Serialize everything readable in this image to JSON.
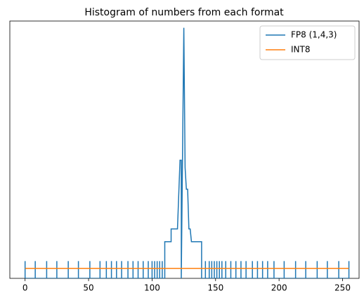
{
  "chart_data": {
    "type": "line",
    "title": "Histogram of numbers from each format",
    "yscale": "log",
    "legend": "upper right",
    "xlim": [
      -12,
      263
    ],
    "ylim": [
      0.7,
      7000
    ],
    "xticks": [
      0,
      50,
      100,
      150,
      200,
      250
    ],
    "series": [
      {
        "name": "FP8 (1,4,3)",
        "color": "#1f77b4",
        "x": [
          0,
          0,
          0,
          8,
          8,
          8,
          17,
          17,
          17,
          25,
          25,
          25,
          34,
          34,
          34,
          42,
          42,
          42,
          51,
          51,
          51,
          59,
          59,
          59,
          64,
          64,
          64,
          68,
          68,
          68,
          72,
          72,
          72,
          76,
          76,
          76,
          81,
          81,
          81,
          85,
          85,
          85,
          89,
          89,
          89,
          93,
          93,
          93,
          97,
          97,
          97,
          100,
          100,
          100,
          102,
          102,
          102,
          104,
          104,
          104,
          106,
          106,
          106,
          108,
          108,
          108,
          110,
          110,
          115,
          115,
          120,
          121,
          122,
          123,
          123,
          125,
          126,
          127,
          128,
          129,
          130,
          131,
          139,
          139,
          142,
          142,
          142,
          145,
          145,
          145,
          147,
          147,
          147,
          149,
          149,
          149,
          151,
          151,
          151,
          153,
          153,
          153,
          155,
          155,
          155,
          158,
          158,
          158,
          162,
          162,
          162,
          166,
          166,
          166,
          170,
          170,
          170,
          174,
          174,
          174,
          179,
          179,
          179,
          183,
          183,
          183,
          187,
          187,
          187,
          191,
          191,
          191,
          196,
          196,
          196,
          204,
          204,
          204,
          213,
          213,
          213,
          221,
          221,
          221,
          230,
          230,
          230,
          238,
          238,
          238,
          247,
          247,
          247,
          255,
          255,
          255
        ],
        "values": [
          0.7,
          1.3,
          0.7,
          0.7,
          1.3,
          0.7,
          0.7,
          1.3,
          0.7,
          0.7,
          1.3,
          0.7,
          0.7,
          1.3,
          0.7,
          0.7,
          1.3,
          0.7,
          0.7,
          1.3,
          0.7,
          0.7,
          1.3,
          0.7,
          0.7,
          1.3,
          0.7,
          0.7,
          1.3,
          0.7,
          0.7,
          1.3,
          0.7,
          0.7,
          1.3,
          0.7,
          0.7,
          1.3,
          0.7,
          0.7,
          1.3,
          0.7,
          0.7,
          1.3,
          0.7,
          0.7,
          1.3,
          0.7,
          0.7,
          1.3,
          0.7,
          0.7,
          1.3,
          0.7,
          0.7,
          1.3,
          0.7,
          0.7,
          1.3,
          0.7,
          0.7,
          1.3,
          0.7,
          0.7,
          1.3,
          0.7,
          0.7,
          2.6,
          2.6,
          4.1,
          4.1,
          14,
          48,
          48,
          0.7,
          5500,
          37,
          17,
          17,
          4.1,
          4.1,
          2.6,
          2.6,
          0.7,
          0.7,
          1.3,
          0.7,
          0.7,
          1.3,
          0.7,
          0.7,
          1.3,
          0.7,
          0.7,
          1.3,
          0.7,
          0.7,
          1.3,
          0.7,
          0.7,
          1.3,
          0.7,
          0.7,
          1.3,
          0.7,
          0.7,
          1.3,
          0.7,
          0.7,
          1.3,
          0.7,
          0.7,
          1.3,
          0.7,
          0.7,
          1.3,
          0.7,
          0.7,
          1.3,
          0.7,
          0.7,
          1.3,
          0.7,
          0.7,
          1.3,
          0.7,
          0.7,
          1.3,
          0.7,
          0.7,
          1.3,
          0.7,
          0.7,
          1.3,
          0.7,
          0.7,
          1.3,
          0.7,
          0.7,
          1.3,
          0.7,
          0.7,
          1.3,
          0.7,
          0.7,
          1.3,
          0.7,
          0.7,
          1.3,
          0.7,
          0.7,
          1.3,
          0.7,
          0.7,
          1.3,
          0.7
        ]
      },
      {
        "name": "INT8",
        "color": "#ff7f0e",
        "x": [
          0,
          255
        ],
        "values": [
          1,
          1
        ]
      }
    ]
  }
}
